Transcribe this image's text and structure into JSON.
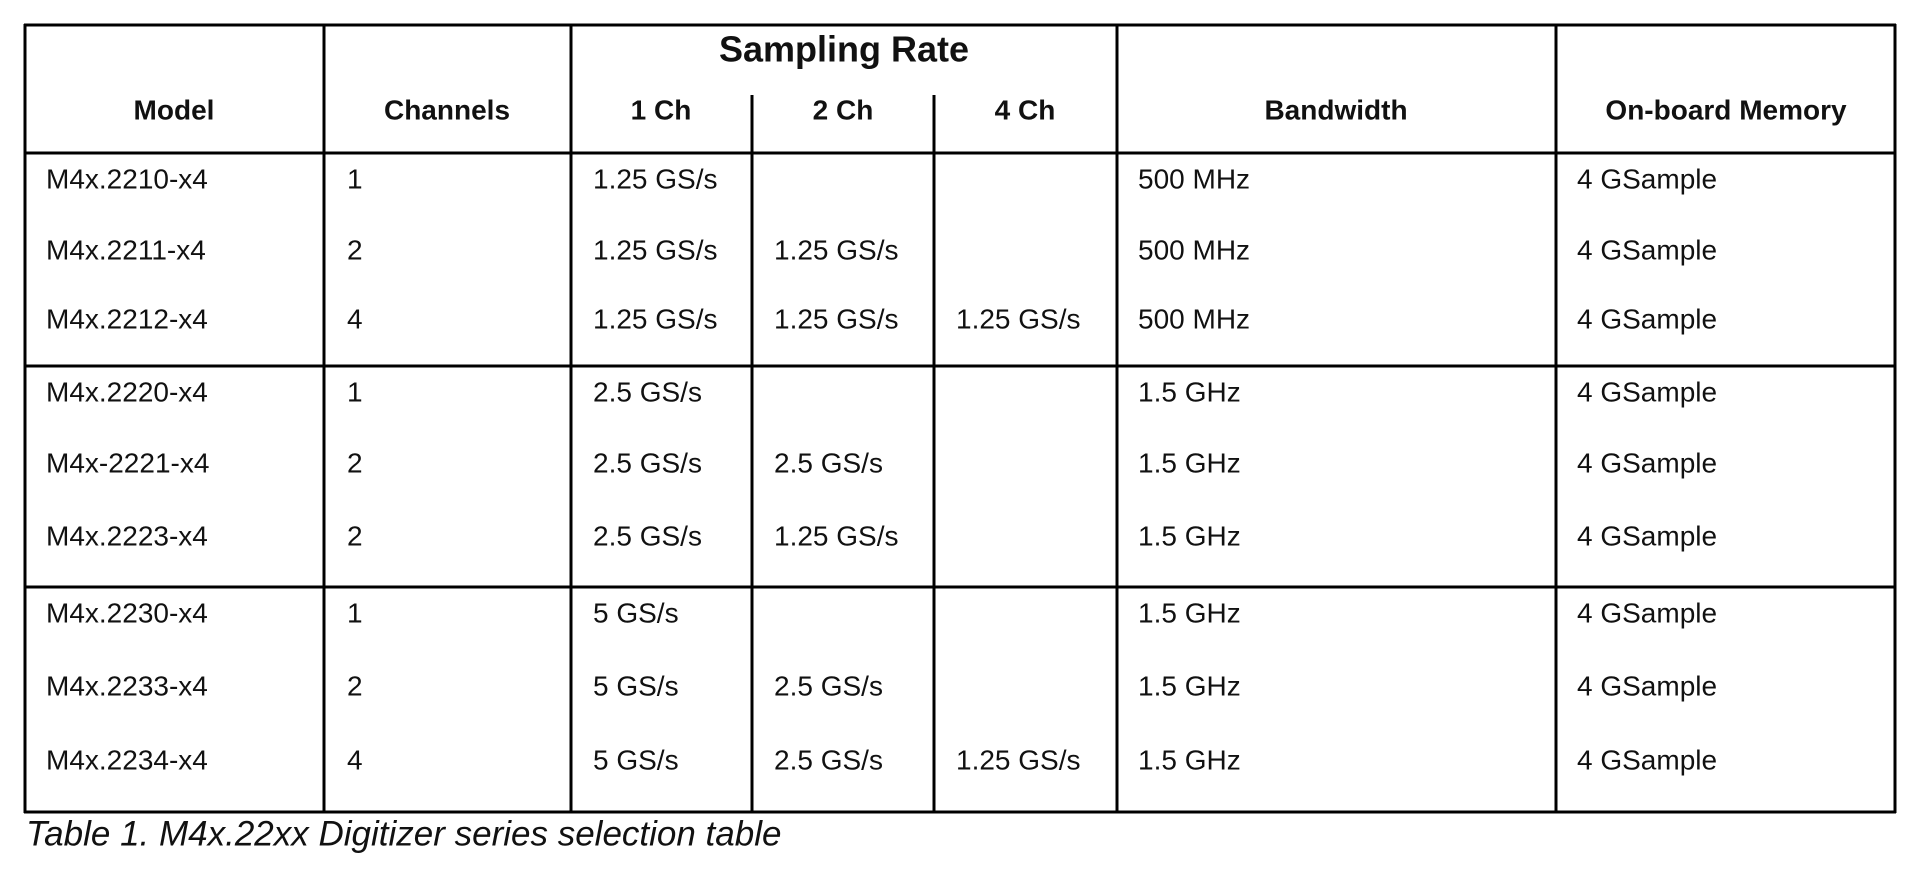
{
  "table": {
    "header": {
      "model": "Model",
      "channels": "Channels",
      "sampling_rate": "Sampling Rate",
      "rate_columns": [
        "1 Ch",
        "2 Ch",
        "4 Ch"
      ],
      "bandwidth": "Bandwidth",
      "memory": "On-board Memory"
    },
    "groups": [
      {
        "rows": [
          [
            "M4x.2210-x4",
            "1",
            "1.25 GS/s",
            null,
            null,
            "500 MHz",
            "4 GSample"
          ],
          [
            "M4x.2211-x4",
            "2",
            "1.25 GS/s",
            "1.25 GS/s",
            null,
            "500 MHz",
            "4 GSample"
          ],
          [
            "M4x.2212-x4",
            "4",
            "1.25 GS/s",
            "1.25 GS/s",
            "1.25 GS/s",
            "500 MHz",
            "4 GSample"
          ]
        ]
      },
      {
        "rows": [
          [
            "M4x.2220-x4",
            "1",
            "2.5 GS/s",
            null,
            null,
            "1.5 GHz",
            "4 GSample"
          ],
          [
            "M4x-2221-x4",
            "2",
            "2.5 GS/s",
            "2.5 GS/s",
            null,
            "1.5 GHz",
            "4 GSample"
          ],
          [
            "M4x.2223-x4",
            "2",
            "2.5 GS/s",
            "1.25 GS/s",
            null,
            "1.5 GHz",
            "4 GSample"
          ]
        ]
      },
      {
        "rows": [
          [
            "M4x.2230-x4",
            "1",
            "5 GS/s",
            null,
            null,
            "1.5 GHz",
            "4 GSample"
          ],
          [
            "M4x.2233-x4",
            "2",
            "5 GS/s",
            "2.5 GS/s",
            null,
            "1.5 GHz",
            "4 GSample"
          ],
          [
            "M4x.2234-x4",
            "4",
            "5 GS/s",
            "2.5 GS/s",
            "1.25 GS/s",
            "1.5 GHz",
            "4 GSample"
          ]
        ]
      }
    ],
    "caption": "Table 1. M4x.22xx Digitizer series selection table"
  }
}
